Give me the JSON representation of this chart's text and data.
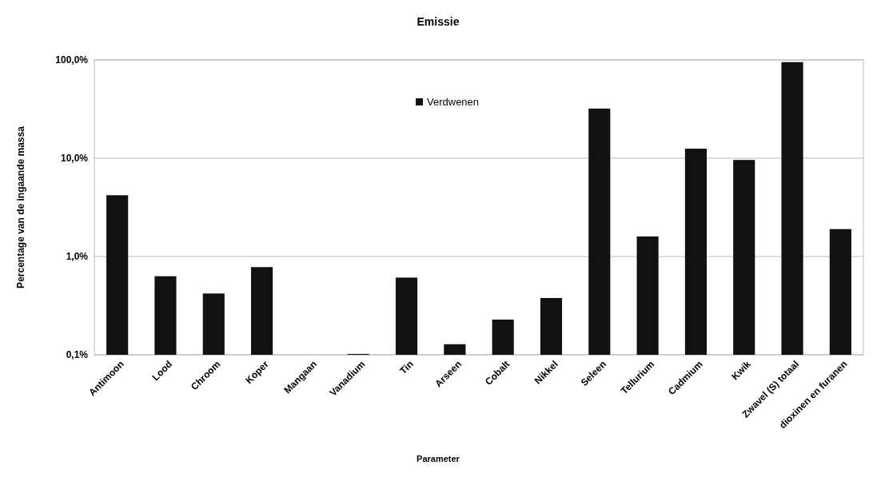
{
  "chart_data": {
    "type": "bar",
    "title": "Emissie",
    "xlabel": "Parameter",
    "ylabel": "Percentage van de ingaande massa",
    "categories": [
      "Antimoon",
      "Lood",
      "Chroom",
      "Koper",
      "Mangaan",
      "Vanadium",
      "Tin",
      "Arseen",
      "Cobalt",
      "Nikkel",
      "Seleen",
      "Tellurium",
      "Cadmium",
      "Kwik",
      "Zwavel (S) totaal",
      "dioxinen en furanen"
    ],
    "series": [
      {
        "name": "Verdwenen",
        "color": "#111111",
        "values": [
          4.2,
          0.63,
          0.42,
          0.78,
          null,
          0.102,
          0.61,
          0.128,
          0.228,
          0.378,
          32,
          1.6,
          12.5,
          9.6,
          95,
          1.9
        ]
      }
    ],
    "log": true,
    "ylim": [
      0.1,
      100
    ],
    "yticks": [
      {
        "value": 0.1,
        "label": "0,1%"
      },
      {
        "value": 1,
        "label": "1,0%"
      },
      {
        "value": 10,
        "label": "10,0%"
      },
      {
        "value": 100,
        "label": "100,0%"
      }
    ],
    "grid": "y",
    "legend": "top"
  }
}
